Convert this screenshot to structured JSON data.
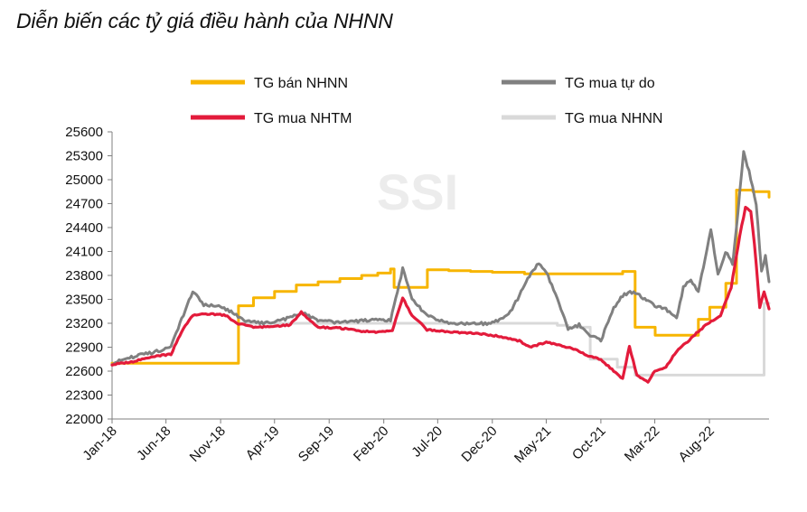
{
  "title": "Diễn biến các tỷ giá điều hành của NHNN",
  "watermark": "SSI",
  "chart_data": {
    "type": "line",
    "title": "Diễn biến các tỷ giá điều hành của NHNN",
    "ylim": [
      22000,
      25600
    ],
    "yticks": [
      22000,
      22300,
      22600,
      22900,
      23200,
      23500,
      23800,
      24100,
      24400,
      24700,
      25000,
      25300,
      25600
    ],
    "xlim": [
      "2018-01-01",
      "2023-01-15"
    ],
    "xticks": [
      "Jan-18",
      "Jun-18",
      "Nov-18",
      "Apr-19",
      "Sep-19",
      "Feb-20",
      "Jul-20",
      "Dec-20",
      "May-21",
      "Oct-21",
      "Mar-22",
      "Aug-22"
    ],
    "grid": false,
    "legend_position": "top",
    "series": [
      {
        "name": "TG bán NHNN",
        "color": "#F7B500",
        "step": true,
        "points": [
          [
            "2018-01-01",
            22700
          ],
          [
            "2018-12-20",
            22700
          ],
          [
            "2018-12-21",
            23420
          ],
          [
            "2019-02-01",
            23520
          ],
          [
            "2019-04-01",
            23600
          ],
          [
            "2019-06-01",
            23680
          ],
          [
            "2019-08-01",
            23720
          ],
          [
            "2019-10-01",
            23760
          ],
          [
            "2019-12-01",
            23800
          ],
          [
            "2020-01-15",
            23830
          ],
          [
            "2020-02-20",
            23880
          ],
          [
            "2020-03-01",
            23650
          ],
          [
            "2020-06-01",
            23650
          ],
          [
            "2020-06-02",
            23870
          ],
          [
            "2020-08-01",
            23860
          ],
          [
            "2020-10-01",
            23850
          ],
          [
            "2020-12-01",
            23840
          ],
          [
            "2021-03-01",
            23820
          ],
          [
            "2021-06-01",
            23820
          ],
          [
            "2021-09-01",
            23820
          ],
          [
            "2021-12-01",
            23850
          ],
          [
            "2022-01-04",
            23850
          ],
          [
            "2022-01-05",
            23150
          ],
          [
            "2022-03-01",
            23150
          ],
          [
            "2022-03-02",
            23050
          ],
          [
            "2022-06-01",
            23050
          ],
          [
            "2022-06-30",
            23050
          ],
          [
            "2022-07-01",
            23250
          ],
          [
            "2022-08-01",
            23250
          ],
          [
            "2022-08-02",
            23400
          ],
          [
            "2022-09-15",
            23400
          ],
          [
            "2022-09-16",
            23700
          ],
          [
            "2022-10-15",
            23700
          ],
          [
            "2022-10-16",
            24870
          ],
          [
            "2022-12-01",
            24850
          ],
          [
            "2023-01-15",
            24780
          ]
        ]
      },
      {
        "name": "TG mua tự do",
        "color": "#808080",
        "step": false,
        "points": [
          [
            "2018-01-01",
            22700
          ],
          [
            "2018-03-01",
            22780
          ],
          [
            "2018-05-01",
            22840
          ],
          [
            "2018-06-15",
            22900
          ],
          [
            "2018-07-15",
            23250
          ],
          [
            "2018-08-15",
            23600
          ],
          [
            "2018-09-15",
            23430
          ],
          [
            "2018-11-01",
            23420
          ],
          [
            "2018-12-15",
            23300
          ],
          [
            "2019-01-15",
            23220
          ],
          [
            "2019-03-01",
            23200
          ],
          [
            "2019-05-01",
            23250
          ],
          [
            "2019-06-15",
            23340
          ],
          [
            "2019-08-01",
            23230
          ],
          [
            "2019-10-01",
            23210
          ],
          [
            "2019-12-01",
            23230
          ],
          [
            "2020-01-20",
            23250
          ],
          [
            "2020-02-20",
            23240
          ],
          [
            "2020-03-25",
            23880
          ],
          [
            "2020-04-20",
            23500
          ],
          [
            "2020-06-01",
            23300
          ],
          [
            "2020-08-01",
            23200
          ],
          [
            "2020-10-01",
            23190
          ],
          [
            "2020-12-01",
            23200
          ],
          [
            "2021-01-15",
            23300
          ],
          [
            "2021-02-15",
            23550
          ],
          [
            "2021-03-15",
            23800
          ],
          [
            "2021-04-10",
            23960
          ],
          [
            "2021-05-01",
            23850
          ],
          [
            "2021-06-01",
            23500
          ],
          [
            "2021-07-01",
            23130
          ],
          [
            "2021-08-01",
            23180
          ],
          [
            "2021-09-01",
            23050
          ],
          [
            "2021-10-01",
            22980
          ],
          [
            "2021-11-01",
            23350
          ],
          [
            "2021-12-01",
            23550
          ],
          [
            "2022-01-01",
            23600
          ],
          [
            "2022-02-01",
            23500
          ],
          [
            "2022-03-01",
            23420
          ],
          [
            "2022-04-01",
            23380
          ],
          [
            "2022-05-01",
            23260
          ],
          [
            "2022-05-20",
            23650
          ],
          [
            "2022-06-10",
            23750
          ],
          [
            "2022-07-01",
            23600
          ],
          [
            "2022-07-20",
            24000
          ],
          [
            "2022-08-05",
            24380
          ],
          [
            "2022-08-25",
            23800
          ],
          [
            "2022-09-15",
            24100
          ],
          [
            "2022-10-05",
            23950
          ],
          [
            "2022-10-20",
            24600
          ],
          [
            "2022-11-05",
            25350
          ],
          [
            "2022-11-20",
            25100
          ],
          [
            "2022-12-10",
            24700
          ],
          [
            "2022-12-25",
            23850
          ],
          [
            "2023-01-05",
            24050
          ],
          [
            "2023-01-15",
            23720
          ]
        ]
      },
      {
        "name": "TG mua NHTM",
        "color": "#E31B3B",
        "step": false,
        "points": [
          [
            "2018-01-01",
            22680
          ],
          [
            "2018-03-01",
            22720
          ],
          [
            "2018-05-01",
            22790
          ],
          [
            "2018-06-15",
            22810
          ],
          [
            "2018-07-15",
            23100
          ],
          [
            "2018-08-15",
            23300
          ],
          [
            "2018-10-01",
            23320
          ],
          [
            "2018-11-15",
            23300
          ],
          [
            "2018-12-15",
            23200
          ],
          [
            "2019-02-01",
            23150
          ],
          [
            "2019-04-01",
            23160
          ],
          [
            "2019-05-15",
            23180
          ],
          [
            "2019-06-15",
            23340
          ],
          [
            "2019-08-01",
            23150
          ],
          [
            "2019-10-01",
            23140
          ],
          [
            "2019-12-01",
            23100
          ],
          [
            "2020-01-20",
            23090
          ],
          [
            "2020-02-25",
            23110
          ],
          [
            "2020-03-25",
            23520
          ],
          [
            "2020-04-20",
            23300
          ],
          [
            "2020-06-01",
            23120
          ],
          [
            "2020-08-01",
            23090
          ],
          [
            "2020-10-01",
            23080
          ],
          [
            "2020-12-01",
            23050
          ],
          [
            "2021-01-15",
            23010
          ],
          [
            "2021-02-15",
            22980
          ],
          [
            "2021-03-15",
            22900
          ],
          [
            "2021-05-01",
            22960
          ],
          [
            "2021-06-15",
            22920
          ],
          [
            "2021-08-01",
            22850
          ],
          [
            "2021-09-01",
            22780
          ],
          [
            "2021-10-01",
            22750
          ],
          [
            "2021-11-01",
            22620
          ],
          [
            "2021-12-01",
            22500
          ],
          [
            "2021-12-20",
            22910
          ],
          [
            "2022-01-10",
            22540
          ],
          [
            "2022-02-10",
            22470
          ],
          [
            "2022-03-01",
            22600
          ],
          [
            "2022-04-01",
            22650
          ],
          [
            "2022-05-01",
            22850
          ],
          [
            "2022-06-01",
            22970
          ],
          [
            "2022-07-01",
            23100
          ],
          [
            "2022-08-01",
            23210
          ],
          [
            "2022-09-01",
            23300
          ],
          [
            "2022-10-01",
            23650
          ],
          [
            "2022-10-25",
            24300
          ],
          [
            "2022-11-10",
            24650
          ],
          [
            "2022-11-25",
            24600
          ],
          [
            "2022-12-05",
            24200
          ],
          [
            "2022-12-20",
            23400
          ],
          [
            "2023-01-01",
            23600
          ],
          [
            "2023-01-15",
            23380
          ]
        ]
      },
      {
        "name": "TG mua NHNN",
        "color": "#D9D9D9",
        "step": true,
        "points": [
          [
            "2018-12-20",
            23200
          ],
          [
            "2021-06-01",
            23175
          ],
          [
            "2021-07-01",
            23150
          ],
          [
            "2021-08-31",
            23150
          ],
          [
            "2021-09-01",
            22750
          ],
          [
            "2021-11-15",
            22750
          ],
          [
            "2021-11-16",
            22650
          ],
          [
            "2022-01-04",
            22650
          ],
          [
            "2022-01-05",
            22550
          ],
          [
            "2022-12-31",
            22550
          ],
          [
            "2023-01-01",
            23450
          ],
          [
            "2023-01-15",
            23450
          ]
        ]
      }
    ]
  }
}
